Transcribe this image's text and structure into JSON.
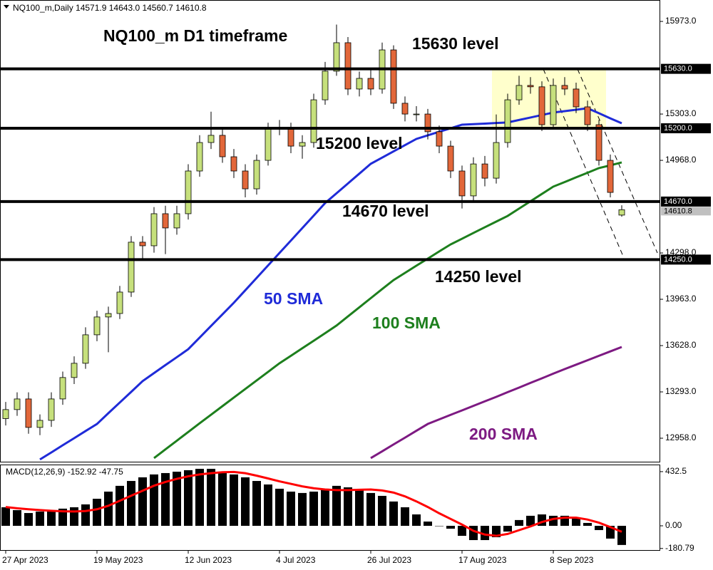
{
  "chart_data": [
    {
      "type": "candlestick",
      "header": "NQ100_m,Daily  14571.9 14643.0 14560.7 14610.8",
      "categories": [
        "27 Apr 2023",
        null,
        null,
        null,
        null,
        null,
        null,
        null,
        "19 May 2023",
        null,
        null,
        null,
        null,
        null,
        null,
        null,
        "12 Jun 2023",
        null,
        null,
        null,
        null,
        null,
        null,
        null,
        "4 Jul 2023",
        null,
        null,
        null,
        null,
        null,
        null,
        null,
        "26 Jul 2023",
        null,
        null,
        null,
        null,
        null,
        null,
        null,
        "17 Aug 2023",
        null,
        null,
        null,
        null,
        null,
        null,
        null,
        "8 Sep 2023",
        null,
        null,
        null,
        null,
        null,
        null
      ],
      "open": [
        13100,
        13165,
        13242,
        13036,
        13087,
        13242,
        13397,
        13500,
        13706,
        13835,
        13860,
        14015,
        14376,
        14350,
        14582,
        14479,
        14582,
        14891,
        15097,
        15149,
        14994,
        14891,
        14762,
        14968,
        15200,
        15200,
        15071,
        15097,
        15406,
        15613,
        15819,
        15484,
        15561,
        15484,
        15767,
        15381,
        15303,
        15303,
        15175,
        15071,
        14891,
        14711,
        14942,
        14839,
        15097,
        15406,
        15510,
        15500,
        15226,
        15510,
        15484,
        15355,
        15226,
        14968,
        14571.9
      ],
      "high": [
        13220,
        13290,
        13290,
        13130,
        13290,
        13440,
        13550,
        13760,
        13880,
        13910,
        14060,
        14420,
        14420,
        14630,
        14640,
        14640,
        14940,
        15150,
        15320,
        15200,
        15050,
        14940,
        15010,
        15240,
        15260,
        15240,
        15150,
        15450,
        15680,
        15950,
        15860,
        15610,
        15620,
        15820,
        15800,
        15430,
        15360,
        15340,
        15220,
        15110,
        14930,
        14990,
        15000,
        15300,
        15450,
        15580,
        15570,
        15540,
        15560,
        15570,
        15530,
        15400,
        15260,
        15010,
        14643.0
      ],
      "low": [
        13050,
        13120,
        12990,
        12980,
        13040,
        13200,
        13350,
        13460,
        13660,
        13580,
        13820,
        13980,
        14250,
        14300,
        14290,
        14430,
        14540,
        14850,
        15050,
        14950,
        14840,
        14700,
        14720,
        14930,
        15150,
        15020,
        14980,
        15060,
        15370,
        15580,
        15440,
        15430,
        15440,
        15450,
        15340,
        15250,
        15250,
        15120,
        15020,
        14840,
        14620,
        14670,
        14780,
        14800,
        15060,
        15370,
        15450,
        15180,
        15190,
        15440,
        15310,
        15180,
        14930,
        14700,
        14560.7
      ],
      "close": [
        13165,
        13242,
        13036,
        13087,
        13242,
        13397,
        13500,
        13706,
        13835,
        13860,
        14015,
        14376,
        14350,
        14582,
        14479,
        14582,
        14891,
        15097,
        15149,
        14994,
        14891,
        14762,
        14968,
        15200,
        15200,
        15071,
        15097,
        15406,
        15613,
        15819,
        15484,
        15561,
        15484,
        15767,
        15381,
        15303,
        15303,
        15175,
        15071,
        14891,
        14711,
        14942,
        14839,
        15097,
        15406,
        15510,
        15500,
        15226,
        15510,
        15484,
        15355,
        15226,
        14968,
        14736,
        14610.8
      ],
      "up_color": "#c6e07c",
      "down_color": "#e2673a",
      "sma": [
        {
          "name": "50 SMA",
          "color": "#1f2bd8",
          "values": [
            null,
            null,
            null,
            12804,
            12855,
            12907,
            12958,
            13010,
            13061,
            13139,
            13216,
            13293,
            13371,
            13429,
            13487,
            13544,
            13602,
            13686,
            13770,
            13854,
            13938,
            14028,
            14118,
            14208,
            14298,
            14388,
            14478,
            14568,
            14659,
            14730,
            14801,
            14872,
            14943,
            14988,
            15033,
            15078,
            15123,
            15149,
            15175,
            15200,
            15226,
            15230,
            15234,
            15238,
            15242,
            15260,
            15278,
            15296,
            15314,
            15324,
            15334,
            15345,
            15309,
            15272,
            15236
          ]
        },
        {
          "name": "100 SMA",
          "color": "#1d7f1d",
          "values": [
            null,
            null,
            null,
            null,
            null,
            null,
            null,
            null,
            null,
            null,
            null,
            null,
            null,
            12814,
            12877,
            12940,
            13003,
            13066,
            13128,
            13190,
            13252,
            13314,
            13376,
            13438,
            13500,
            13554,
            13609,
            13663,
            13718,
            13773,
            13839,
            13905,
            13971,
            14037,
            14102,
            14154,
            14206,
            14257,
            14309,
            14360,
            14401,
            14443,
            14484,
            14525,
            14566,
            14619,
            14672,
            14725,
            14778,
            14811,
            14845,
            14878,
            14912,
            14932,
            14953
          ]
        },
        {
          "name": "200 SMA",
          "color": "#7d1a82",
          "values": [
            null,
            null,
            null,
            null,
            null,
            null,
            null,
            null,
            null,
            null,
            null,
            null,
            null,
            null,
            null,
            null,
            null,
            null,
            null,
            null,
            null,
            null,
            null,
            null,
            null,
            null,
            null,
            null,
            null,
            null,
            null,
            null,
            12814,
            12863,
            12913,
            12962,
            13012,
            13061,
            13094,
            13127,
            13159,
            13192,
            13225,
            13257,
            13291,
            13324,
            13358,
            13391,
            13425,
            13458,
            13490,
            13522,
            13554,
            13586,
            13618
          ]
        }
      ],
      "levels": [
        {
          "value": 15630,
          "label": "15630.0"
        },
        {
          "value": 15200,
          "label": "15200.0"
        },
        {
          "value": 14670,
          "label": "14670.0"
        },
        {
          "value": 14250,
          "label": "14250.0"
        }
      ],
      "last_price": {
        "value": 14610.8,
        "label": "14610.8"
      },
      "annotations": [
        "NQ100_m D1 timeframe",
        "15630 level",
        "15200 level",
        "14670 level",
        "14250 level"
      ],
      "ylim": [
        12788,
        16128
      ],
      "yticks": [
        {
          "value": 15973,
          "label": "15973.0"
        },
        {
          "value": 15303,
          "label": "15303.0"
        },
        {
          "value": 14968,
          "label": "14968.0"
        },
        {
          "value": 14298,
          "label": "14298.0"
        },
        {
          "value": 13963,
          "label": "13963.0"
        },
        {
          "value": 13628,
          "label": "13628.0"
        },
        {
          "value": 13293,
          "label": "13293.0"
        },
        {
          "value": 12958,
          "label": "12958.0"
        }
      ],
      "grid": false
    },
    {
      "type": "macd",
      "title": "MACD(12,26,9) -152.92 -47.75",
      "histogram": {
        "color": "#000000",
        "values": [
          148,
          125,
          102,
          114,
          125,
          137,
          148,
          171,
          216,
          273,
          319,
          358,
          387,
          410,
          421,
          432,
          444,
          455,
          455,
          432,
          410,
          387,
          358,
          330,
          296,
          273,
          262,
          273,
          296,
          319,
          307,
          285,
          262,
          239,
          194,
          148,
          91,
          34,
          0,
          -23,
          -80,
          -114,
          -114,
          -91,
          -46,
          46,
          80,
          91,
          80,
          80,
          57,
          23,
          -34,
          -102,
          -152.92
        ]
      },
      "signal": {
        "color": "#ff0000",
        "values": [
          150,
          140,
          132,
          126,
          120,
          116,
          114,
          118,
          132,
          160,
          200,
          240,
          280,
          320,
          350,
          375,
          395,
          410,
          420,
          428,
          430,
          420,
          400,
          378,
          355,
          335,
          315,
          300,
          290,
          285,
          285,
          288,
          290,
          282,
          265,
          235,
          195,
          150,
          100,
          55,
          10,
          -40,
          -70,
          -80,
          -65,
          -35,
          -5,
          30,
          55,
          65,
          65,
          50,
          25,
          -10,
          -47.75
        ]
      },
      "ylim": [
        -193.5,
        489
      ],
      "yticks": [
        {
          "value": 432.5,
          "label": "432.5"
        },
        {
          "value": 0,
          "label": "0.00"
        },
        {
          "value": -180.79,
          "label": "-180.79"
        }
      ]
    }
  ]
}
